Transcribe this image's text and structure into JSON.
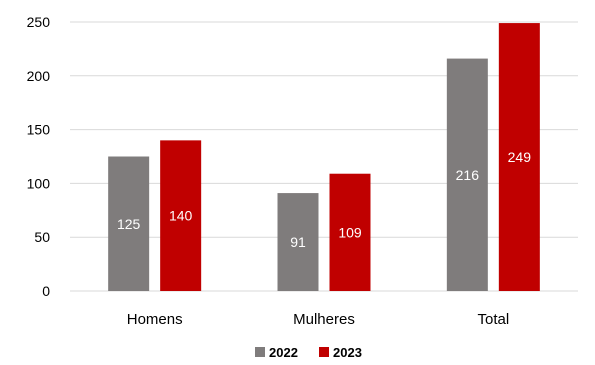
{
  "chart_data": {
    "type": "bar",
    "title": "",
    "xlabel": "",
    "ylabel": "",
    "categories": [
      "Homens",
      "Mulheres",
      "Total"
    ],
    "series": [
      {
        "name": "2022",
        "color": "#7f7c7c",
        "values": [
          125,
          91,
          216
        ]
      },
      {
        "name": "2023",
        "color": "#c00000",
        "values": [
          140,
          109,
          249
        ]
      }
    ],
    "ylim": [
      0,
      250
    ],
    "yticks": [
      0,
      50,
      100,
      150,
      200,
      250
    ],
    "grid": true,
    "legend_position": "bottom",
    "data_labels": true
  }
}
